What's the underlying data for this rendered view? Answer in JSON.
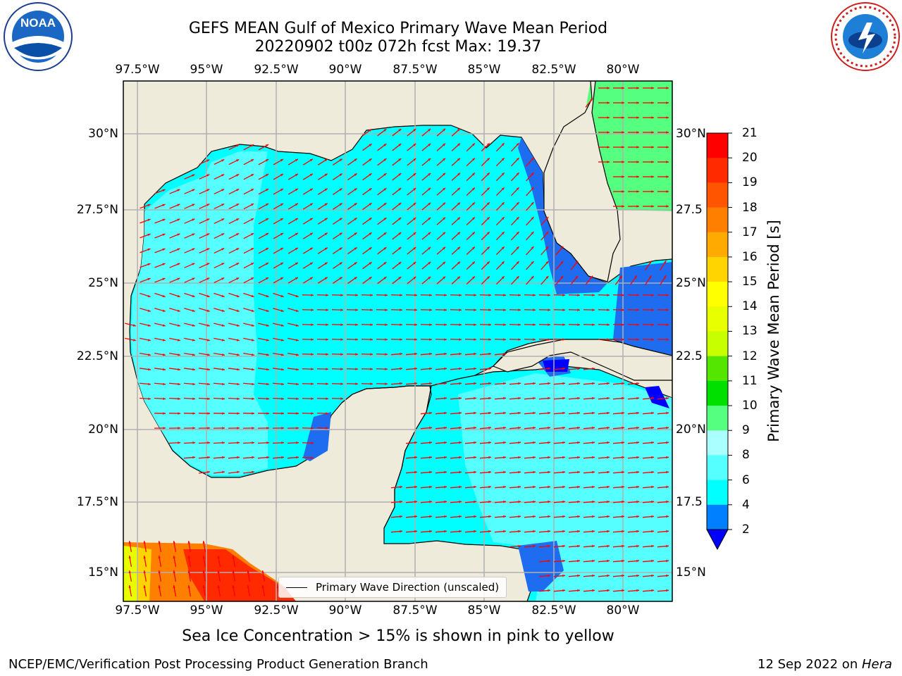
{
  "title": {
    "line1": "GEFS MEAN Gulf of Mexico Primary Wave Mean Period",
    "line2": "20220902 t00z 072h fcst   Max: 19.37"
  },
  "map": {
    "lon_ticks": [
      "97.5°W",
      "95°W",
      "92.5°W",
      "90°W",
      "87.5°W",
      "85°W",
      "82.5°W",
      "80°W"
    ],
    "lat_ticks_left": [
      "30°N",
      "27.5°N",
      "25°N",
      "22.5°N",
      "20°N",
      "17.5°N",
      "15°N"
    ],
    "lat_ticks_right": [
      "30°N",
      "27.5",
      "25°N",
      "22.5",
      "20°N",
      "17.5",
      "15°N"
    ],
    "lon_range": [
      -98,
      -78.2
    ],
    "lat_range": [
      14,
      31.6
    ],
    "land_color": "#efebdb",
    "ocean_color": "#00ffff"
  },
  "colorbar": {
    "label": "Primary Wave Mean Period [s]",
    "ticks": [
      "21",
      "20",
      "19",
      "18",
      "17",
      "16",
      "15",
      "14",
      "13",
      "12",
      "11",
      "10",
      "9",
      "8",
      "6",
      "4",
      "2"
    ],
    "colors": [
      "#ff0000",
      "#ff2a00",
      "#ff5500",
      "#ff8000",
      "#ffaa00",
      "#ffd400",
      "#ffff00",
      "#e8ff00",
      "#c8ff00",
      "#55e600",
      "#00e000",
      "#55ff80",
      "#aaffff",
      "#55ffff",
      "#00ffff",
      "#0080ff"
    ],
    "extend_color": "#0000ff"
  },
  "legend": {
    "label": "Primary Wave Direction (unscaled)"
  },
  "subtitle": "Sea Ice Concentration > 15% is shown in pink to yellow",
  "footer": {
    "left": "NCEP/EMC/Verification Post Processing Product Generation Branch",
    "right_date": "12 Sep 2022 on ",
    "right_host": "Hera"
  },
  "logos": {
    "noaa": "NOAA",
    "nws": "NATIONAL WEATHER SERVICE"
  }
}
